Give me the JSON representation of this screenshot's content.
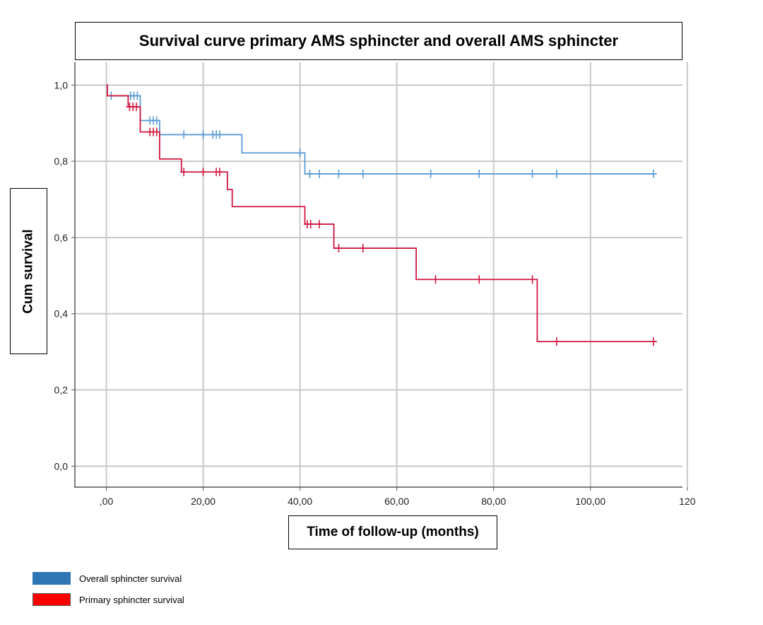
{
  "chart_data": {
    "type": "line",
    "title": "Survival curve primary AMS sphincter and overall AMS sphincter",
    "xlabel": "Time of follow-up (months)",
    "ylabel": "Cum survival",
    "xlim": [
      -6.5,
      119
    ],
    "ylim": [
      -0.055,
      1.06
    ],
    "x_ticks": [
      0,
      20,
      40,
      60,
      80,
      100,
      120
    ],
    "x_tick_labels": [
      ",00",
      "20,00",
      "40,00",
      "60,00",
      "80,00",
      "100,00",
      "120"
    ],
    "y_ticks": [
      0,
      0.2,
      0.4,
      0.6,
      0.8,
      1.0
    ],
    "y_tick_labels": [
      "0,0",
      "0,2",
      "0,4",
      "0,6",
      "0,8",
      "1,0"
    ],
    "grid": true,
    "legend_position": "bottom-left",
    "series": [
      {
        "name": "Overall sphincter survival",
        "legend_color": "#2e75b6",
        "line_color": "#5b9bd5",
        "steps": [
          [
            0,
            1.0
          ],
          [
            0.2,
            0.972
          ],
          [
            7,
            0.907
          ],
          [
            11,
            0.87
          ],
          [
            28,
            0.822
          ],
          [
            41,
            0.767
          ],
          [
            113.5,
            0.767
          ]
        ],
        "censored": [
          [
            1,
            0.972
          ],
          [
            5,
            0.972
          ],
          [
            5.7,
            0.972
          ],
          [
            6.4,
            0.972
          ],
          [
            9,
            0.907
          ],
          [
            9.7,
            0.907
          ],
          [
            10.4,
            0.907
          ],
          [
            16,
            0.87
          ],
          [
            20,
            0.87
          ],
          [
            22,
            0.87
          ],
          [
            22.7,
            0.87
          ],
          [
            23.4,
            0.87
          ],
          [
            40,
            0.822
          ],
          [
            42,
            0.767
          ],
          [
            44,
            0.767
          ],
          [
            48,
            0.767
          ],
          [
            53,
            0.767
          ],
          [
            67,
            0.767
          ],
          [
            77,
            0.767
          ],
          [
            88,
            0.767
          ],
          [
            93,
            0.767
          ],
          [
            113,
            0.767
          ]
        ]
      },
      {
        "name": "Primary sphincter survival",
        "legend_color": "#ff0000",
        "line_color": "#d0173f",
        "steps": [
          [
            0,
            1.0
          ],
          [
            0.2,
            0.972
          ],
          [
            4.5,
            0.943
          ],
          [
            7,
            0.877
          ],
          [
            11,
            0.806
          ],
          [
            15.5,
            0.772
          ],
          [
            25,
            0.726
          ],
          [
            26,
            0.681
          ],
          [
            41,
            0.635
          ],
          [
            47,
            0.572
          ],
          [
            64,
            0.49
          ],
          [
            89,
            0.327
          ],
          [
            113.5,
            0.327
          ]
        ],
        "censored": [
          [
            4.8,
            0.943
          ],
          [
            5.5,
            0.943
          ],
          [
            6.2,
            0.943
          ],
          [
            9,
            0.877
          ],
          [
            9.7,
            0.877
          ],
          [
            10.4,
            0.877
          ],
          [
            16,
            0.772
          ],
          [
            20,
            0.772
          ],
          [
            22.7,
            0.772
          ],
          [
            23.4,
            0.772
          ],
          [
            41.5,
            0.635
          ],
          [
            42.2,
            0.635
          ],
          [
            44,
            0.635
          ],
          [
            48,
            0.572
          ],
          [
            53,
            0.572
          ],
          [
            68,
            0.49
          ],
          [
            77,
            0.49
          ],
          [
            88,
            0.49
          ],
          [
            93,
            0.327
          ],
          [
            113,
            0.327
          ]
        ]
      }
    ]
  }
}
